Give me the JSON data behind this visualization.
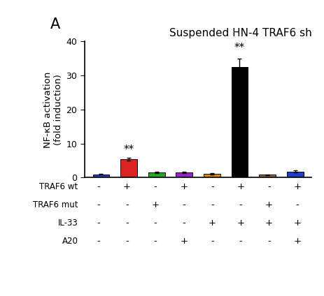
{
  "title": "Suspended HN-4 TRAF6 sh",
  "ylabel_line1": "NF-κB activation",
  "ylabel_line2": "(fold induction)",
  "panel_label": "A",
  "bar_values": [
    1.0,
    5.5,
    1.5,
    1.5,
    1.2,
    32.5,
    0.8,
    1.8
  ],
  "bar_errors": [
    0.15,
    0.4,
    0.2,
    0.2,
    0.2,
    2.5,
    0.15,
    0.3
  ],
  "bar_colors": [
    "#1a3fcc",
    "#dd2222",
    "#22aa22",
    "#9922cc",
    "#dd8800",
    "#000000",
    "#996633",
    "#1a3fcc"
  ],
  "significance": [
    false,
    true,
    false,
    false,
    false,
    true,
    false,
    false
  ],
  "ylim": [
    0,
    40
  ],
  "yticks": [
    0,
    10,
    20,
    30,
    40
  ],
  "table_rows": [
    "TRAF6 wt",
    "TRAF6 mut",
    "IL-33",
    "A20"
  ],
  "table_data": [
    [
      "-",
      "+",
      "-",
      "+",
      "-",
      "+",
      "-",
      "+"
    ],
    [
      "-",
      "-",
      "+",
      "-",
      "-",
      "-",
      "+",
      "-"
    ],
    [
      "-",
      "-",
      "-",
      "-",
      "+",
      "+",
      "+",
      "+"
    ],
    [
      "-",
      "-",
      "-",
      "+",
      "-",
      "-",
      "-",
      "+"
    ]
  ],
  "background_color": "#ffffff",
  "n_bars": 8
}
